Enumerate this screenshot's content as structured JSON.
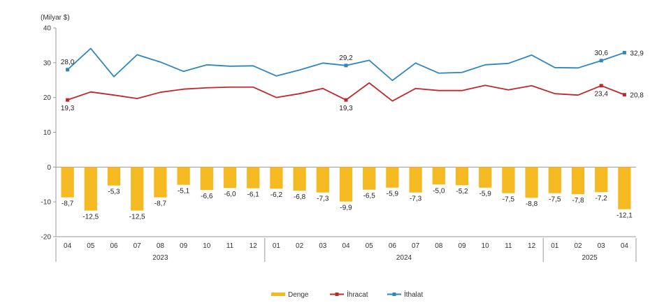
{
  "chart_data": {
    "type": "bar",
    "unit_label": "(Milyar $)",
    "ylim": [
      -20,
      40
    ],
    "yticks": [
      "-20",
      "-10",
      "0",
      "10",
      "20",
      "30",
      "40"
    ],
    "categories": [
      "04",
      "05",
      "06",
      "07",
      "08",
      "09",
      "10",
      "11",
      "12",
      "01",
      "02",
      "03",
      "04",
      "05",
      "06",
      "07",
      "08",
      "09",
      "10",
      "11",
      "12",
      "01",
      "02",
      "03",
      "04"
    ],
    "years": [
      {
        "label": "2023",
        "start": 0,
        "end": 8
      },
      {
        "label": "2024",
        "start": 9,
        "end": 20
      },
      {
        "label": "2025",
        "start": 21,
        "end": 24
      }
    ],
    "series": [
      {
        "name": "Denge",
        "kind": "bar",
        "color": "#F5B921",
        "values": [
          -8.7,
          -12.5,
          -5.3,
          -12.5,
          -8.7,
          -5.1,
          -6.6,
          -6.0,
          -6.1,
          -6.2,
          -6.8,
          -7.3,
          -9.9,
          -6.5,
          -5.9,
          -7.3,
          -5.0,
          -5.2,
          -5.9,
          -7.5,
          -8.8,
          -7.5,
          -7.8,
          -7.2,
          -12.1
        ],
        "labels": [
          "-8,7",
          "-12,5",
          "-5,3",
          "-12,5",
          "-8,7",
          "-5,1",
          "-6,6",
          "-6,0",
          "-6,1",
          "-6,2",
          "-6,8",
          "-7,3",
          "-9,9",
          "-6,5",
          "-5,9",
          "-7,3",
          "-5,0",
          "-5,2",
          "-5,9",
          "-7,5",
          "-8,8",
          "-7,5",
          "-7,8",
          "-7,2",
          "-12,1"
        ]
      },
      {
        "name": "İhracat",
        "kind": "line",
        "color": "#C0272D",
        "values": [
          19.3,
          21.6,
          20.7,
          19.7,
          21.5,
          22.4,
          22.8,
          23.0,
          23.0,
          20.0,
          21.1,
          22.6,
          19.3,
          24.2,
          19.0,
          22.6,
          22.0,
          22.0,
          23.5,
          22.2,
          23.4,
          21.1,
          20.7,
          23.4,
          20.8
        ],
        "markers": [
          {
            "index": 0,
            "label": "19,3",
            "pos": "below"
          },
          {
            "index": 12,
            "label": "19,3",
            "pos": "below"
          },
          {
            "index": 23,
            "label": "23,4",
            "pos": "below"
          },
          {
            "index": 24,
            "label": "20,8",
            "pos": "right"
          }
        ]
      },
      {
        "name": "İthalat",
        "kind": "line",
        "color": "#2E86C1",
        "values": [
          28.0,
          34.1,
          26.0,
          32.3,
          30.2,
          27.5,
          29.4,
          29.0,
          29.1,
          26.2,
          27.9,
          29.9,
          29.2,
          30.7,
          24.9,
          29.9,
          27.0,
          27.2,
          29.4,
          29.8,
          32.2,
          28.6,
          28.5,
          30.6,
          32.9
        ],
        "markers": [
          {
            "index": 0,
            "label": "28,0",
            "pos": "above"
          },
          {
            "index": 12,
            "label": "29,2",
            "pos": "above"
          },
          {
            "index": 23,
            "label": "30,6",
            "pos": "above"
          },
          {
            "index": 24,
            "label": "32,9",
            "pos": "right"
          }
        ]
      }
    ],
    "legend": {
      "placement": "bottom-center",
      "items": [
        "Denge",
        "İhracat",
        "İthalat"
      ]
    },
    "grid": false
  }
}
